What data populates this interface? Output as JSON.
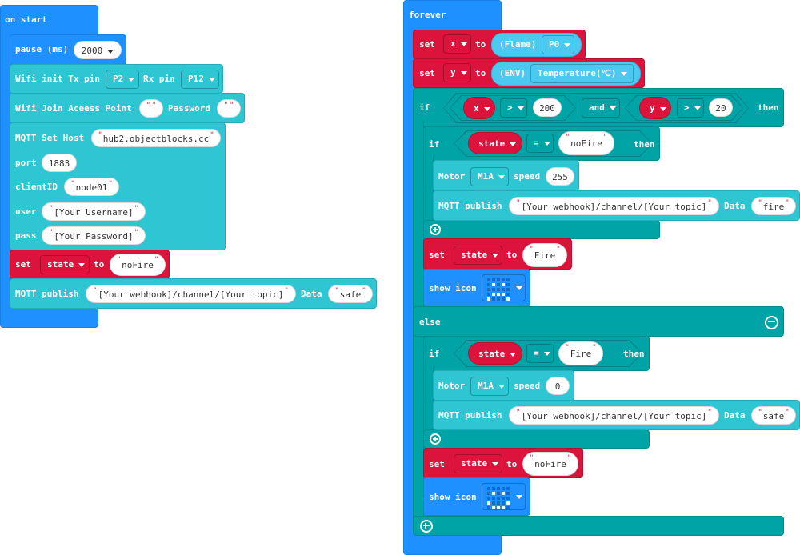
{
  "colors": {
    "events": "#1e90ff",
    "variables": "#dc143c",
    "logic": "#00a4a6",
    "iot": "#2fc6d4",
    "sensor": "#4cc9f0"
  },
  "on_start": {
    "title": "on start",
    "pause": {
      "label": "pause (ms)",
      "value": "2000"
    },
    "wifi_init": {
      "label": "Wifi init Tx pin",
      "tx": "P2",
      "rx_label": "Rx pin",
      "rx": "P12"
    },
    "wifi_join": {
      "label": "Wifi Join Aceess Point",
      "ssid": "",
      "password_label": "Password",
      "password": ""
    },
    "mqtt_host": {
      "label": "MQTT Set Host",
      "host": "hub2.objectblocks.cc",
      "port_label": "port",
      "port": "1883",
      "client_label": "clientID",
      "client_id": "node01",
      "user_label": "user",
      "user": "[Your Username]",
      "pass_label": "pass",
      "pass": "[Your Password]"
    },
    "set_state": {
      "set": "set",
      "var": "state",
      "to": "to",
      "value": "noFire"
    },
    "publish": {
      "label": "MQTT publish",
      "topic": "[Your webhook]/channel/[Your topic]",
      "data_label": "Data",
      "data": "safe"
    }
  },
  "forever": {
    "title": "forever",
    "set_x": {
      "set": "set",
      "var": "x",
      "to": "to",
      "sensor": "(Flame)",
      "pin": "P0"
    },
    "set_y": {
      "set": "set",
      "var": "y",
      "to": "to",
      "sensor": "(ENV)",
      "reading": "Temperature(℃)"
    },
    "if": {
      "if": "if",
      "left": {
        "var": "x",
        "op": ">",
        "value": "200"
      },
      "join": "and",
      "right": {
        "var": "y",
        "op": ">",
        "value": "20"
      },
      "then": "then",
      "inner_if": {
        "if": "if",
        "var": "state",
        "op": "=",
        "value": "noFire",
        "then": "then",
        "motor": {
          "label": "Motor",
          "motor": "M1A",
          "speed_label": "speed",
          "speed": "255"
        },
        "publish": {
          "label": "MQTT publish",
          "topic": "[Your webhook]/channel/[Your topic]",
          "data_label": "Data",
          "data": "fire"
        }
      },
      "set_state": {
        "set": "set",
        "var": "state",
        "to": "to",
        "value": "Fire"
      },
      "show_icon": {
        "label": "show icon",
        "icon": "sad",
        "leds": [
          "00000",
          "01010",
          "00000",
          "01110",
          "10001"
        ]
      }
    },
    "else": {
      "label": "else",
      "inner_if": {
        "if": "if",
        "var": "state",
        "op": "=",
        "value": "Fire",
        "then": "then",
        "motor": {
          "label": "Motor",
          "motor": "M1A",
          "speed_label": "speed",
          "speed": "0"
        },
        "publish": {
          "label": "MQTT publish",
          "topic": "[Your webhook]/channel/[Your topic]",
          "data_label": "Data",
          "data": "safe"
        }
      },
      "set_state": {
        "set": "set",
        "var": "state",
        "to": "to",
        "value": "noFire"
      },
      "show_icon": {
        "label": "show icon",
        "icon": "happy",
        "leds": [
          "00000",
          "01010",
          "00000",
          "10001",
          "01110"
        ]
      }
    }
  }
}
